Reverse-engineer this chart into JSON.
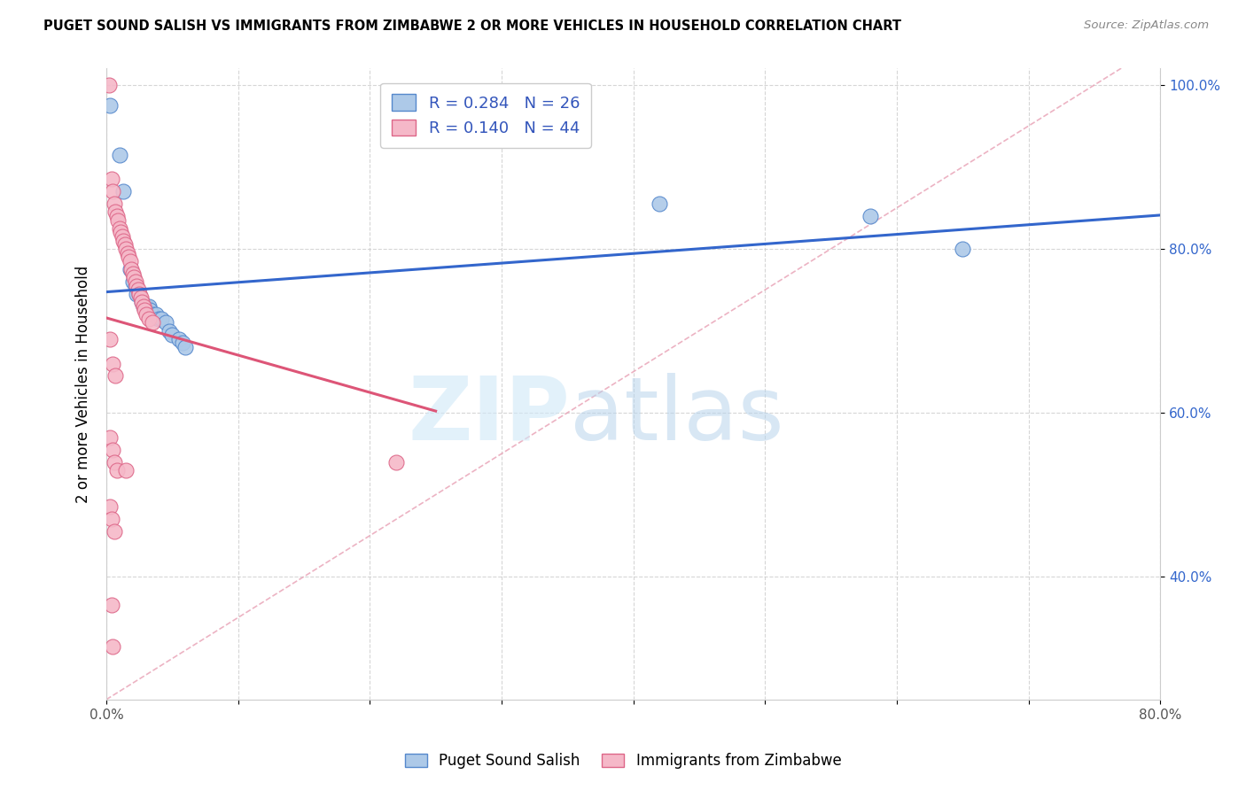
{
  "title": "PUGET SOUND SALISH VS IMMIGRANTS FROM ZIMBABWE 2 OR MORE VEHICLES IN HOUSEHOLD CORRELATION CHART",
  "source": "Source: ZipAtlas.com",
  "ylabel": "2 or more Vehicles in Household",
  "blue_label": "Puget Sound Salish",
  "pink_label": "Immigrants from Zimbabwe",
  "blue_R": 0.284,
  "blue_N": 26,
  "pink_R": 0.14,
  "pink_N": 44,
  "blue_color": "#adc9e8",
  "pink_color": "#f5b8c8",
  "blue_edge_color": "#5588cc",
  "pink_edge_color": "#dd6688",
  "blue_line_color": "#3366cc",
  "pink_line_color": "#dd5577",
  "dash_line_color": "#e8a0b4",
  "legend_text_color": "#3355bb",
  "xlim": [
    0.0,
    0.8
  ],
  "ylim": [
    0.25,
    1.02
  ],
  "xticks": [
    0.0,
    0.1,
    0.2,
    0.3,
    0.4,
    0.5,
    0.6,
    0.7,
    0.8
  ],
  "xtick_labels": [
    "0.0%",
    "",
    "",
    "",
    "",
    "",
    "",
    "",
    "80.0%"
  ],
  "yticks": [
    0.4,
    0.6,
    0.8,
    1.0
  ],
  "ytick_labels": [
    "40.0%",
    "60.0%",
    "80.0%",
    "100.0%"
  ],
  "blue_points": [
    [
      0.003,
      0.975
    ],
    [
      0.01,
      0.915
    ],
    [
      0.013,
      0.87
    ],
    [
      0.018,
      0.775
    ],
    [
      0.02,
      0.76
    ],
    [
      0.022,
      0.755
    ],
    [
      0.023,
      0.745
    ],
    [
      0.025,
      0.745
    ],
    [
      0.027,
      0.735
    ],
    [
      0.028,
      0.73
    ],
    [
      0.03,
      0.73
    ],
    [
      0.032,
      0.73
    ],
    [
      0.033,
      0.725
    ],
    [
      0.035,
      0.72
    ],
    [
      0.038,
      0.72
    ],
    [
      0.04,
      0.715
    ],
    [
      0.042,
      0.715
    ],
    [
      0.045,
      0.71
    ],
    [
      0.048,
      0.7
    ],
    [
      0.05,
      0.695
    ],
    [
      0.055,
      0.69
    ],
    [
      0.058,
      0.685
    ],
    [
      0.06,
      0.68
    ],
    [
      0.42,
      0.855
    ],
    [
      0.58,
      0.84
    ],
    [
      0.65,
      0.8
    ]
  ],
  "pink_points": [
    [
      0.002,
      1.0
    ],
    [
      0.004,
      0.885
    ],
    [
      0.005,
      0.87
    ],
    [
      0.006,
      0.855
    ],
    [
      0.007,
      0.845
    ],
    [
      0.008,
      0.84
    ],
    [
      0.009,
      0.835
    ],
    [
      0.01,
      0.825
    ],
    [
      0.011,
      0.82
    ],
    [
      0.012,
      0.815
    ],
    [
      0.013,
      0.81
    ],
    [
      0.014,
      0.805
    ],
    [
      0.015,
      0.8
    ],
    [
      0.016,
      0.795
    ],
    [
      0.017,
      0.79
    ],
    [
      0.018,
      0.785
    ],
    [
      0.019,
      0.775
    ],
    [
      0.02,
      0.77
    ],
    [
      0.021,
      0.765
    ],
    [
      0.022,
      0.76
    ],
    [
      0.023,
      0.755
    ],
    [
      0.024,
      0.75
    ],
    [
      0.025,
      0.745
    ],
    [
      0.026,
      0.74
    ],
    [
      0.027,
      0.735
    ],
    [
      0.028,
      0.73
    ],
    [
      0.029,
      0.725
    ],
    [
      0.03,
      0.72
    ],
    [
      0.032,
      0.715
    ],
    [
      0.035,
      0.71
    ],
    [
      0.003,
      0.69
    ],
    [
      0.005,
      0.66
    ],
    [
      0.007,
      0.645
    ],
    [
      0.003,
      0.57
    ],
    [
      0.005,
      0.555
    ],
    [
      0.006,
      0.54
    ],
    [
      0.008,
      0.53
    ],
    [
      0.015,
      0.53
    ],
    [
      0.22,
      0.54
    ],
    [
      0.003,
      0.485
    ],
    [
      0.004,
      0.47
    ],
    [
      0.006,
      0.455
    ],
    [
      0.004,
      0.365
    ],
    [
      0.005,
      0.315
    ]
  ]
}
